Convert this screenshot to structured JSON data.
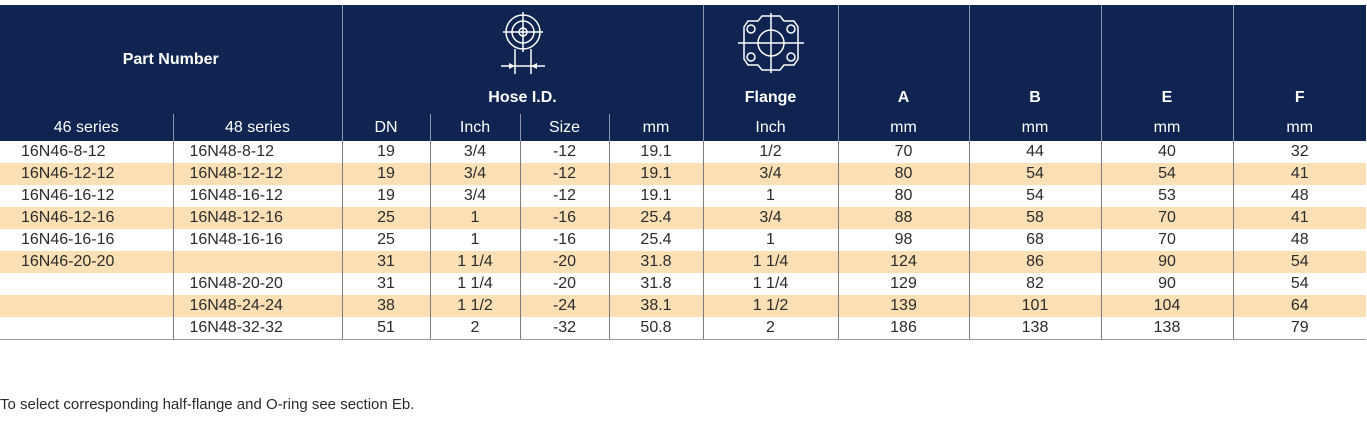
{
  "header": {
    "part_number": "Part Number",
    "hose_id": "Hose I.D.",
    "flange": "Flange",
    "a": "A",
    "b": "B",
    "e": "E",
    "f": "F"
  },
  "subheader": {
    "series46": "46 series",
    "series48": "48 series",
    "dn": "DN",
    "inch": "Inch",
    "size": "Size",
    "mm": "mm",
    "flange_inch": "Inch",
    "a_mm": "mm",
    "b_mm": "mm",
    "e_mm": "mm",
    "f_mm": "mm"
  },
  "icons": {
    "hose_icon": "hose-cross-section-icon",
    "flange_icon": "flange-four-bolt-icon"
  },
  "colors": {
    "header_bg": "#0f2451",
    "alt_row": "#fbe0b5"
  },
  "rows": [
    {
      "s46": "16N46-8-12",
      "s48": "16N48-8-12",
      "dn": "19",
      "inch": "3/4",
      "size": "-12",
      "mm": "19.1",
      "flange": "1/2",
      "a": "70",
      "b": "44",
      "e": "40",
      "f": "32"
    },
    {
      "s46": "16N46-12-12",
      "s48": "16N48-12-12",
      "dn": "19",
      "inch": "3/4",
      "size": "-12",
      "mm": "19.1",
      "flange": "3/4",
      "a": "80",
      "b": "54",
      "e": "54",
      "f": "41"
    },
    {
      "s46": "16N46-16-12",
      "s48": "16N48-16-12",
      "dn": "19",
      "inch": "3/4",
      "size": "-12",
      "mm": "19.1",
      "flange": "1",
      "a": "80",
      "b": "54",
      "e": "53",
      "f": "48"
    },
    {
      "s46": "16N46-12-16",
      "s48": "16N48-12-16",
      "dn": "25",
      "inch": "1",
      "size": "-16",
      "mm": "25.4",
      "flange": "3/4",
      "a": "88",
      "b": "58",
      "e": "70",
      "f": "41"
    },
    {
      "s46": "16N46-16-16",
      "s48": "16N48-16-16",
      "dn": "25",
      "inch": "1",
      "size": "-16",
      "mm": "25.4",
      "flange": "1",
      "a": "98",
      "b": "68",
      "e": "70",
      "f": "48"
    },
    {
      "s46": "16N46-20-20",
      "s48": "",
      "dn": "31",
      "inch": "1 1/4",
      "size": "-20",
      "mm": "31.8",
      "flange": "1 1/4",
      "a": "124",
      "b": "86",
      "e": "90",
      "f": "54"
    },
    {
      "s46": "",
      "s48": "16N48-20-20",
      "dn": "31",
      "inch": "1 1/4",
      "size": "-20",
      "mm": "31.8",
      "flange": "1 1/4",
      "a": "129",
      "b": "82",
      "e": "90",
      "f": "54"
    },
    {
      "s46": "",
      "s48": "16N48-24-24",
      "dn": "38",
      "inch": "1 1/2",
      "size": "-24",
      "mm": "38.1",
      "flange": "1 1/2",
      "a": "139",
      "b": "101",
      "e": "104",
      "f": "64"
    },
    {
      "s46": "",
      "s48": "16N48-32-32",
      "dn": "51",
      "inch": "2",
      "size": "-32",
      "mm": "50.8",
      "flange": "2",
      "a": "186",
      "b": "138",
      "e": "138",
      "f": "79"
    }
  ],
  "footnote": "To select corresponding half-flange and O-ring see section Eb."
}
